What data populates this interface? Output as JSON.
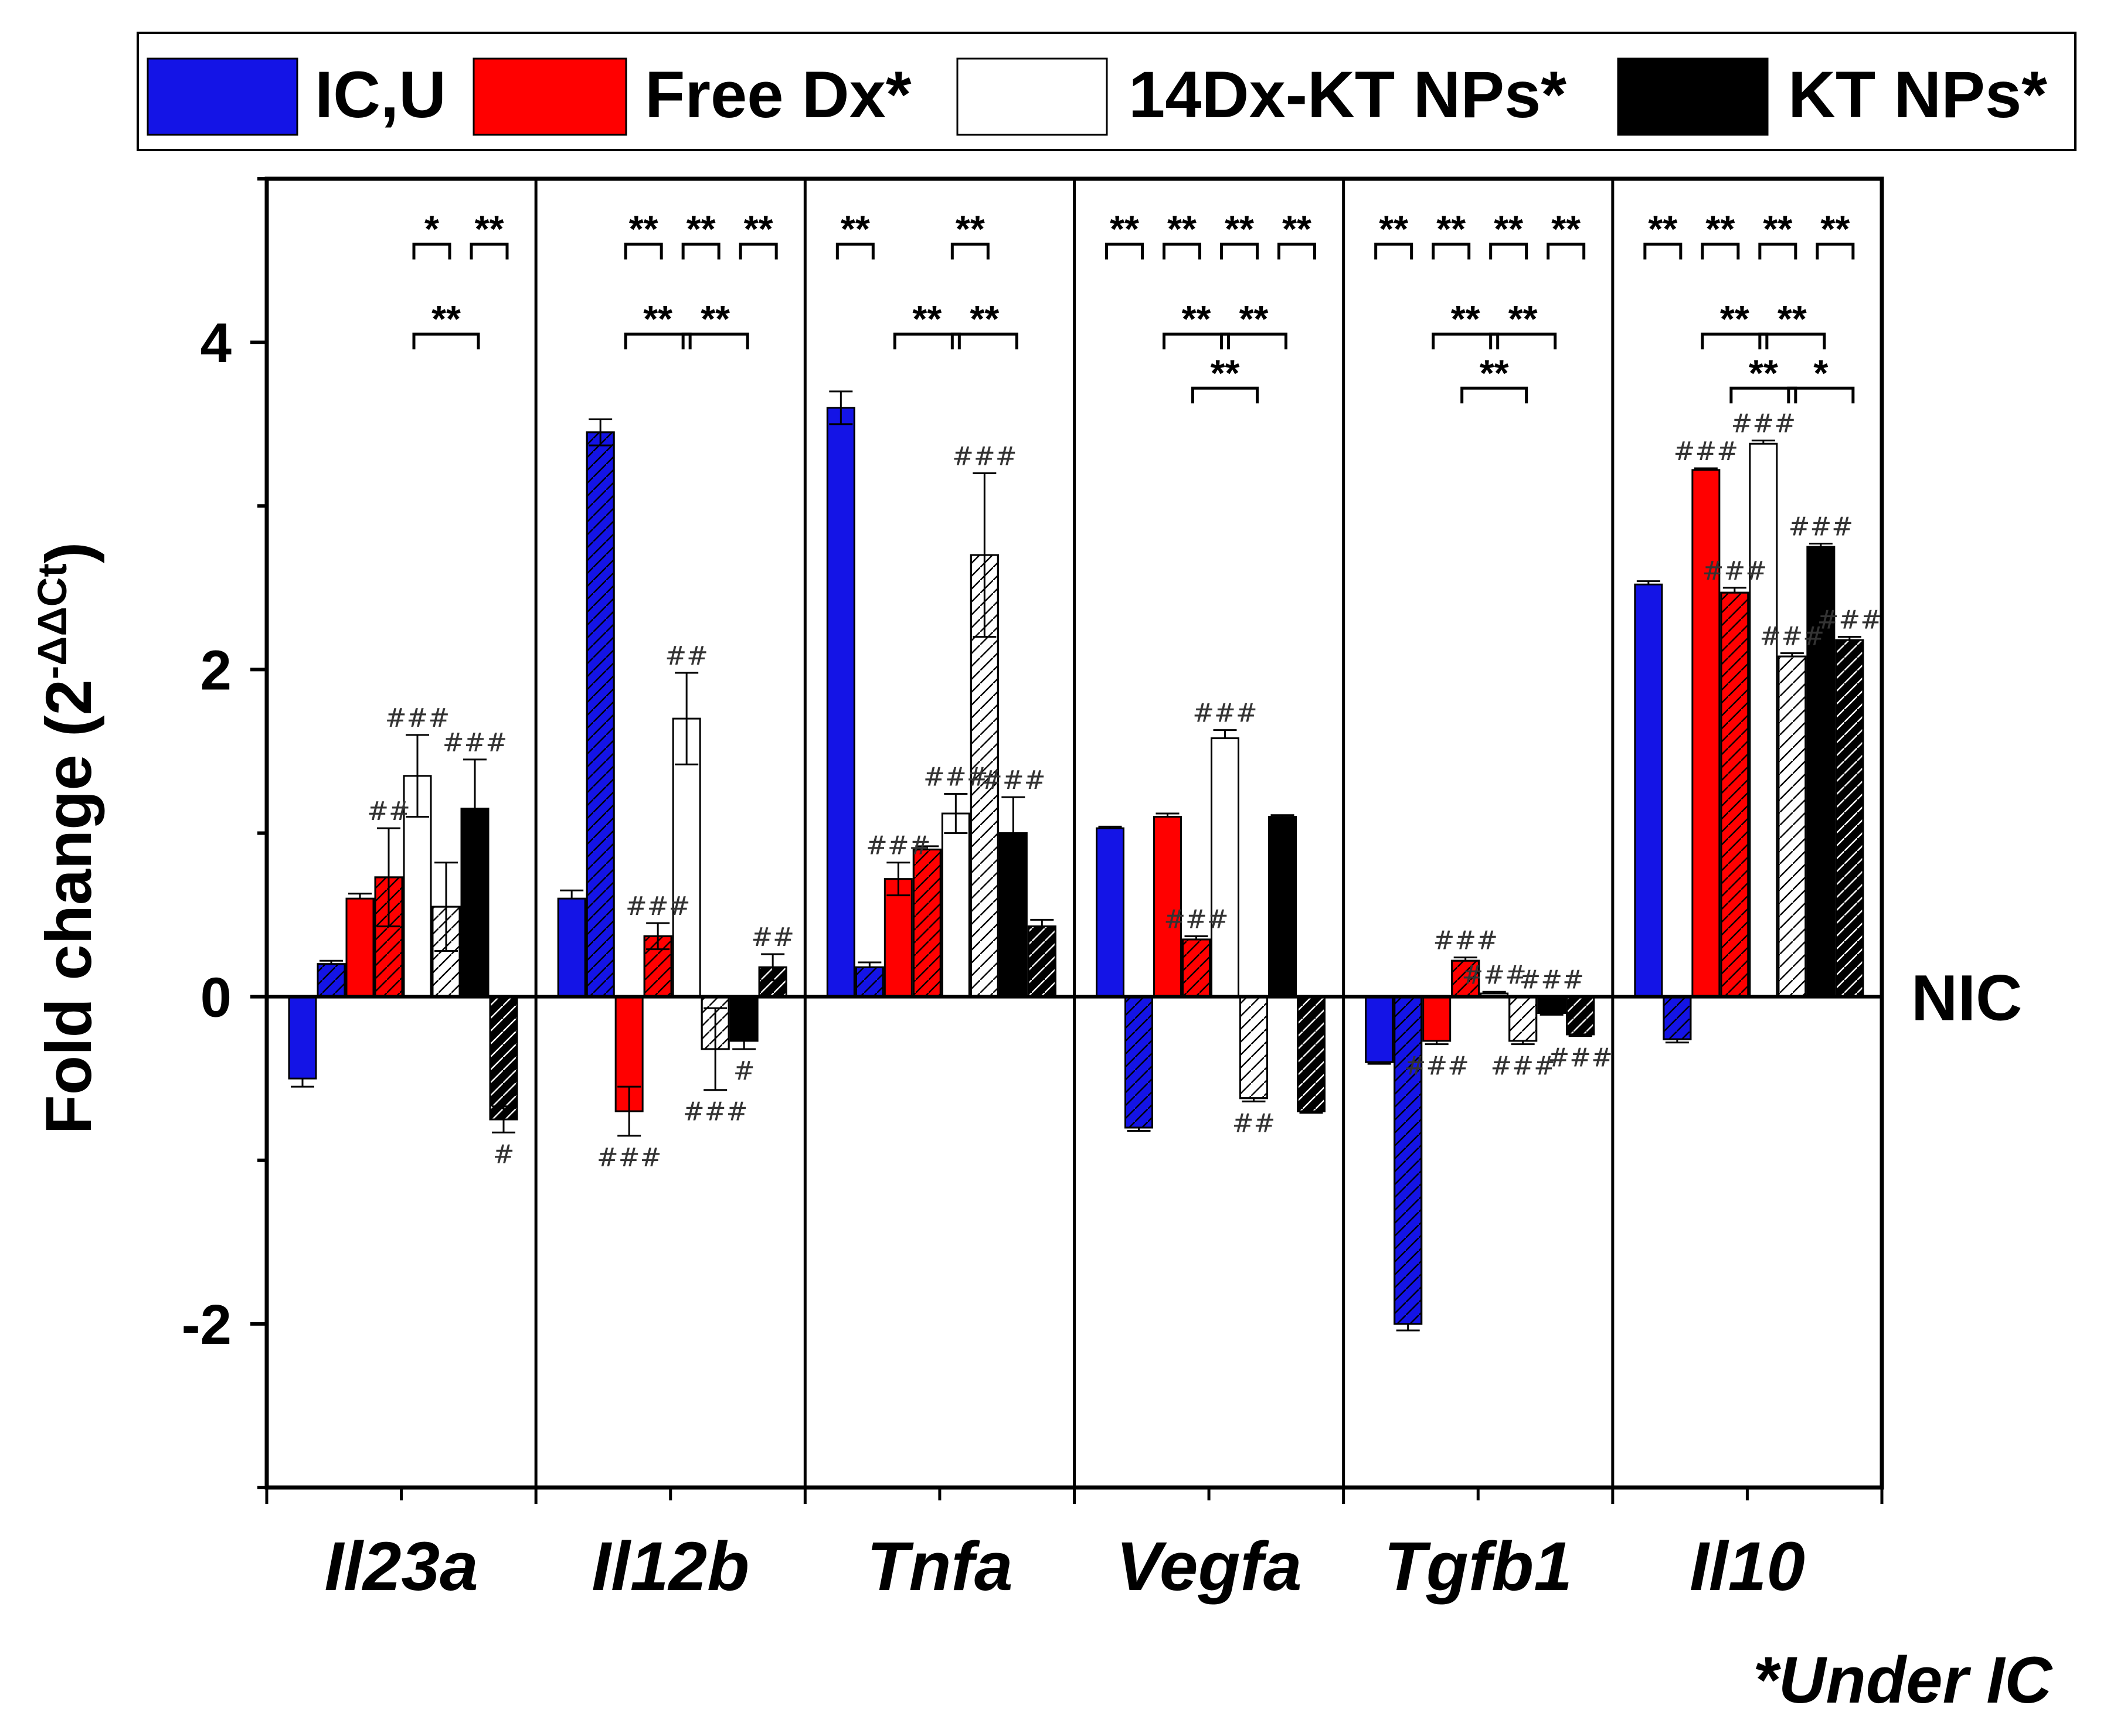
{
  "chart_data": {
    "type": "bar",
    "ylabel": "Fold change (2",
    "ylabel_sup": "-ΔΔCt",
    "ylabel_close": ")",
    "ylim": [
      -3,
      5
    ],
    "yticks": [
      -2,
      0,
      2,
      4
    ],
    "ytick_labels": [
      "-2",
      "0",
      "2",
      "4"
    ],
    "baseline_label": "NIC",
    "footnote": "*Under IC",
    "categories": [
      "Il23a",
      "Il12b",
      "Tnfa",
      "Vegfa",
      "Tgfb1",
      "Il10"
    ],
    "legend": [
      {
        "label": "IC,U",
        "color": "#1414e6"
      },
      {
        "label": "Free Dx*",
        "color": "#ff0000"
      },
      {
        "label": "14Dx-KT NPs*",
        "color": "#ffffff"
      },
      {
        "label": "KT NPs*",
        "color": "#000000"
      }
    ],
    "hatch_note": "second bar of each pair is hatched",
    "groups": [
      {
        "name": "Il23a",
        "bars": [
          {
            "color": "#1414e6",
            "hatched": false,
            "value": -0.5,
            "err": 0.05
          },
          {
            "color": "#1414e6",
            "hatched": true,
            "value": 0.2,
            "err": 0.02
          },
          {
            "color": "#ff0000",
            "hatched": false,
            "value": 0.6,
            "err": 0.03,
            "mark": "",
            "mark_pos": "above"
          },
          {
            "color": "#ff0000",
            "hatched": true,
            "value": 0.73,
            "err": 0.3,
            "mark": "##",
            "mark_pos": "above"
          },
          {
            "color": "#ffffff",
            "hatched": false,
            "value": 1.35,
            "err": 0.25,
            "mark": "###",
            "mark_pos": "above"
          },
          {
            "color": "#ffffff",
            "hatched": true,
            "value": 0.55,
            "err": 0.27
          },
          {
            "color": "#000000",
            "hatched": false,
            "value": 1.15,
            "err": 0.3,
            "mark": "###",
            "mark_pos": "above"
          },
          {
            "color": "#000000",
            "hatched": true,
            "value": -0.75,
            "err": 0.08,
            "mark": "#",
            "mark_pos": "below"
          }
        ]
      },
      {
        "name": "Il12b",
        "bars": [
          {
            "color": "#1414e6",
            "hatched": false,
            "value": 0.6,
            "err": 0.05
          },
          {
            "color": "#1414e6",
            "hatched": true,
            "value": 3.45,
            "err": 0.08
          },
          {
            "color": "#ff0000",
            "hatched": false,
            "value": -0.7,
            "err": 0.15,
            "mark": "###",
            "mark_pos": "below"
          },
          {
            "color": "#ff0000",
            "hatched": true,
            "value": 0.37,
            "err": 0.08,
            "mark": "###",
            "mark_pos": "above"
          },
          {
            "color": "#ffffff",
            "hatched": false,
            "value": 1.7,
            "err": 0.28,
            "mark": "##",
            "mark_pos": "above"
          },
          {
            "color": "#ffffff",
            "hatched": true,
            "value": -0.32,
            "err": 0.25,
            "mark": "###",
            "mark_pos": "below"
          },
          {
            "color": "#000000",
            "hatched": false,
            "value": -0.27,
            "err": 0.05,
            "mark": "#",
            "mark_pos": "below"
          },
          {
            "color": "#000000",
            "hatched": true,
            "value": 0.18,
            "err": 0.08,
            "mark": "##",
            "mark_pos": "above"
          }
        ]
      },
      {
        "name": "Tnfa",
        "bars": [
          {
            "color": "#1414e6",
            "hatched": false,
            "value": 3.6,
            "err": 0.1
          },
          {
            "color": "#1414e6",
            "hatched": true,
            "value": 0.18,
            "err": 0.03
          },
          {
            "color": "#ff0000",
            "hatched": false,
            "value": 0.72,
            "err": 0.1,
            "mark": "###",
            "mark_pos": "above"
          },
          {
            "color": "#ff0000",
            "hatched": true,
            "value": 0.9,
            "err": 0.02
          },
          {
            "color": "#ffffff",
            "hatched": false,
            "value": 1.12,
            "err": 0.12,
            "mark": "###",
            "mark_pos": "above"
          },
          {
            "color": "#ffffff",
            "hatched": true,
            "value": 2.7,
            "err": 0.5,
            "mark": "###",
            "mark_pos": "above"
          },
          {
            "color": "#000000",
            "hatched": false,
            "value": 1.0,
            "err": 0.22,
            "mark": "###",
            "mark_pos": "above"
          },
          {
            "color": "#000000",
            "hatched": true,
            "value": 0.43,
            "err": 0.04
          }
        ]
      },
      {
        "name": "Vegfa",
        "bars": [
          {
            "color": "#1414e6",
            "hatched": false,
            "value": 1.03,
            "err": 0.01
          },
          {
            "color": "#1414e6",
            "hatched": true,
            "value": -0.8,
            "err": 0.02
          },
          {
            "color": "#ff0000",
            "hatched": false,
            "value": 1.1,
            "err": 0.02
          },
          {
            "color": "#ff0000",
            "hatched": true,
            "value": 0.35,
            "err": 0.02,
            "mark": "###",
            "mark_pos": "above"
          },
          {
            "color": "#ffffff",
            "hatched": false,
            "value": 1.58,
            "err": 0.05,
            "mark": "###",
            "mark_pos": "above"
          },
          {
            "color": "#ffffff",
            "hatched": true,
            "value": -0.62,
            "err": 0.02,
            "mark": "##",
            "mark_pos": "below"
          },
          {
            "color": "#000000",
            "hatched": false,
            "value": 1.1,
            "err": 0.01
          },
          {
            "color": "#000000",
            "hatched": true,
            "value": -0.7,
            "err": 0.01
          }
        ]
      },
      {
        "name": "Tgfb1",
        "bars": [
          {
            "color": "#1414e6",
            "hatched": false,
            "value": -0.4,
            "err": 0.01
          },
          {
            "color": "#1414e6",
            "hatched": true,
            "value": -2.0,
            "err": 0.04
          },
          {
            "color": "#ff0000",
            "hatched": false,
            "value": -0.27,
            "err": 0.02,
            "mark": "###",
            "mark_pos": "below"
          },
          {
            "color": "#ff0000",
            "hatched": true,
            "value": 0.22,
            "err": 0.02,
            "mark": "###",
            "mark_pos": "above"
          },
          {
            "color": "#ffffff",
            "hatched": false,
            "value": 0.02,
            "err": 0.01,
            "mark": "###",
            "mark_pos": "above"
          },
          {
            "color": "#ffffff",
            "hatched": true,
            "value": -0.27,
            "err": 0.02,
            "mark": "###",
            "mark_pos": "below"
          },
          {
            "color": "#000000",
            "hatched": false,
            "value": -0.1,
            "err": 0.01,
            "mark": "###",
            "mark_pos": "above"
          },
          {
            "color": "#000000",
            "hatched": true,
            "value": -0.23,
            "err": 0.01,
            "mark": "###",
            "mark_pos": "below"
          }
        ]
      },
      {
        "name": "Il10",
        "bars": [
          {
            "color": "#1414e6",
            "hatched": false,
            "value": 2.52,
            "err": 0.02
          },
          {
            "color": "#1414e6",
            "hatched": true,
            "value": -0.26,
            "err": 0.02
          },
          {
            "color": "#ff0000",
            "hatched": false,
            "value": 3.22,
            "err": 0.01,
            "mark": "###",
            "mark_pos": "above"
          },
          {
            "color": "#ff0000",
            "hatched": true,
            "value": 2.47,
            "err": 0.03,
            "mark": "###",
            "mark_pos": "above"
          },
          {
            "color": "#ffffff",
            "hatched": false,
            "value": 3.38,
            "err": 0.02,
            "mark": "###",
            "mark_pos": "above"
          },
          {
            "color": "#ffffff",
            "hatched": true,
            "value": 2.08,
            "err": 0.02,
            "mark": "###",
            "mark_pos": "above"
          },
          {
            "color": "#000000",
            "hatched": false,
            "value": 2.75,
            "err": 0.02,
            "mark": "###",
            "mark_pos": "above"
          },
          {
            "color": "#000000",
            "hatched": true,
            "value": 2.18,
            "err": 0.02,
            "mark": "###",
            "mark_pos": "above"
          }
        ]
      }
    ],
    "significance": [
      {
        "group": 0,
        "from": 4,
        "to": 5,
        "label": "*",
        "y": 4.6
      },
      {
        "group": 0,
        "from": 6,
        "to": 7,
        "label": "**",
        "y": 4.6
      },
      {
        "group": 0,
        "from": 4,
        "to": 6,
        "label": "**",
        "y": 4.05
      },
      {
        "group": 1,
        "from": 2,
        "to": 3,
        "label": "**",
        "y": 4.6
      },
      {
        "group": 1,
        "from": 4,
        "to": 5,
        "label": "**",
        "y": 4.6
      },
      {
        "group": 1,
        "from": 6,
        "to": 7,
        "label": "**",
        "y": 4.6
      },
      {
        "group": 1,
        "from": 2,
        "to": 4,
        "label": "**",
        "y": 4.05
      },
      {
        "group": 1,
        "from": 4,
        "to": 6,
        "label": "**",
        "y": 4.05
      },
      {
        "group": 2,
        "from": 0,
        "to": 1,
        "label": "**",
        "y": 4.6
      },
      {
        "group": 2,
        "from": 4,
        "to": 5,
        "label": "**",
        "y": 4.6
      },
      {
        "group": 2,
        "from": 2,
        "to": 4,
        "label": "**",
        "y": 4.05
      },
      {
        "group": 2,
        "from": 4,
        "to": 6,
        "label": "**",
        "y": 4.05
      },
      {
        "group": 3,
        "from": 0,
        "to": 1,
        "label": "**",
        "y": 4.6
      },
      {
        "group": 3,
        "from": 2,
        "to": 3,
        "label": "**",
        "y": 4.6
      },
      {
        "group": 3,
        "from": 4,
        "to": 5,
        "label": "**",
        "y": 4.6
      },
      {
        "group": 3,
        "from": 6,
        "to": 7,
        "label": "**",
        "y": 4.6
      },
      {
        "group": 3,
        "from": 2,
        "to": 4,
        "label": "**",
        "y": 4.05
      },
      {
        "group": 3,
        "from": 4,
        "to": 6,
        "label": "**",
        "y": 4.05
      },
      {
        "group": 3,
        "from": 3,
        "to": 5,
        "label": "**",
        "y": 3.72
      },
      {
        "group": 4,
        "from": 0,
        "to": 1,
        "label": "**",
        "y": 4.6
      },
      {
        "group": 4,
        "from": 2,
        "to": 3,
        "label": "**",
        "y": 4.6
      },
      {
        "group": 4,
        "from": 4,
        "to": 5,
        "label": "**",
        "y": 4.6
      },
      {
        "group": 4,
        "from": 6,
        "to": 7,
        "label": "**",
        "y": 4.6
      },
      {
        "group": 4,
        "from": 2,
        "to": 4,
        "label": "**",
        "y": 4.05
      },
      {
        "group": 4,
        "from": 4,
        "to": 6,
        "label": "**",
        "y": 4.05
      },
      {
        "group": 4,
        "from": 3,
        "to": 5,
        "label": "**",
        "y": 3.72
      },
      {
        "group": 5,
        "from": 0,
        "to": 1,
        "label": "**",
        "y": 4.6
      },
      {
        "group": 5,
        "from": 2,
        "to": 3,
        "label": "**",
        "y": 4.6
      },
      {
        "group": 5,
        "from": 4,
        "to": 5,
        "label": "**",
        "y": 4.6
      },
      {
        "group": 5,
        "from": 6,
        "to": 7,
        "label": "**",
        "y": 4.6
      },
      {
        "group": 5,
        "from": 2,
        "to": 4,
        "label": "**",
        "y": 4.05
      },
      {
        "group": 5,
        "from": 4,
        "to": 6,
        "label": "**",
        "y": 4.05
      },
      {
        "group": 5,
        "from": 3,
        "to": 5,
        "label": "**",
        "y": 3.72
      },
      {
        "group": 5,
        "from": 5,
        "to": 7,
        "label": "*",
        "y": 3.72
      }
    ]
  }
}
